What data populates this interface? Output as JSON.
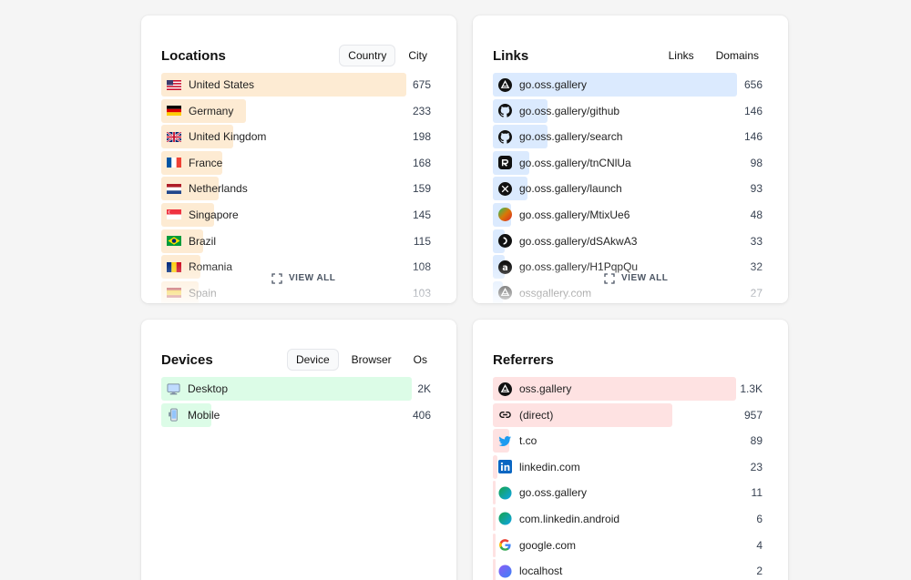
{
  "locations": {
    "title": "Locations",
    "tabs": [
      "Country",
      "City"
    ],
    "active_tab": 0,
    "bar_color": "#fdebd3",
    "view_all": "VIEW ALL",
    "rows": [
      {
        "label": "United States",
        "value": "675",
        "flag": "us",
        "frac": 1.0
      },
      {
        "label": "Germany",
        "value": "233",
        "flag": "de",
        "frac": 0.345
      },
      {
        "label": "United Kingdom",
        "value": "198",
        "flag": "gb",
        "frac": 0.293
      },
      {
        "label": "France",
        "value": "168",
        "flag": "fr",
        "frac": 0.249
      },
      {
        "label": "Netherlands",
        "value": "159",
        "flag": "nl",
        "frac": 0.236
      },
      {
        "label": "Singapore",
        "value": "145",
        "flag": "sg",
        "frac": 0.215
      },
      {
        "label": "Brazil",
        "value": "115",
        "flag": "br",
        "frac": 0.17
      },
      {
        "label": "Romania",
        "value": "108",
        "flag": "ro",
        "frac": 0.16
      },
      {
        "label": "Spain",
        "value": "103",
        "flag": "es",
        "frac": 0.153
      }
    ]
  },
  "links": {
    "title": "Links",
    "tabs": [
      "Links",
      "Domains"
    ],
    "active_tab": -1,
    "bar_color": "#dbeafe",
    "view_all": "VIEW ALL",
    "rows": [
      {
        "label": "go.oss.gallery",
        "value": "656",
        "icon": "oss",
        "frac": 1.0
      },
      {
        "label": "go.oss.gallery/github",
        "value": "146",
        "icon": "github",
        "frac": 0.223
      },
      {
        "label": "go.oss.gallery/search",
        "value": "146",
        "icon": "github",
        "frac": 0.223
      },
      {
        "label": "go.oss.gallery/tnCNlUa",
        "value": "98",
        "icon": "r-logo",
        "frac": 0.15
      },
      {
        "label": "go.oss.gallery/launch",
        "value": "93",
        "icon": "x-logo",
        "frac": 0.142
      },
      {
        "label": "go.oss.gallery/MtixUe6",
        "value": "48",
        "icon": "gradient",
        "frac": 0.073
      },
      {
        "label": "go.oss.gallery/dSAkwA3",
        "value": "33",
        "icon": "d-logo",
        "frac": 0.05
      },
      {
        "label": "go.oss.gallery/H1PqpQu",
        "value": "32",
        "icon": "a-logo",
        "frac": 0.049
      },
      {
        "label": "ossgallery.com",
        "value": "27",
        "icon": "oss",
        "frac": 0.041
      }
    ]
  },
  "devices": {
    "title": "Devices",
    "tabs": [
      "Device",
      "Browser",
      "Os"
    ],
    "active_tab": 0,
    "bar_color": "#dcfce7",
    "rows": [
      {
        "label": "Desktop",
        "value": "2K",
        "icon": "desktop",
        "frac": 1.0
      },
      {
        "label": "Mobile",
        "value": "406",
        "icon": "mobile",
        "frac": 0.2
      }
    ]
  },
  "referrers": {
    "title": "Referrers",
    "bar_color": "#fee2e2",
    "rows": [
      {
        "label": "oss.gallery",
        "value": "1.3K",
        "icon": "oss",
        "frac": 1.0
      },
      {
        "label": "(direct)",
        "value": "957",
        "icon": "link",
        "frac": 0.736
      },
      {
        "label": "t.co",
        "value": "89",
        "icon": "twitter",
        "frac": 0.068
      },
      {
        "label": "linkedin.com",
        "value": "23",
        "icon": "linkedin",
        "frac": 0.018
      },
      {
        "label": "go.oss.gallery",
        "value": "11",
        "icon": "globe-green",
        "frac": 0.008
      },
      {
        "label": "com.linkedin.android",
        "value": "6",
        "icon": "globe-green",
        "frac": 0.005
      },
      {
        "label": "google.com",
        "value": "4",
        "icon": "google",
        "frac": 0.003
      },
      {
        "label": "localhost",
        "value": "2",
        "icon": "globe-purple",
        "frac": 0.0015
      }
    ]
  }
}
